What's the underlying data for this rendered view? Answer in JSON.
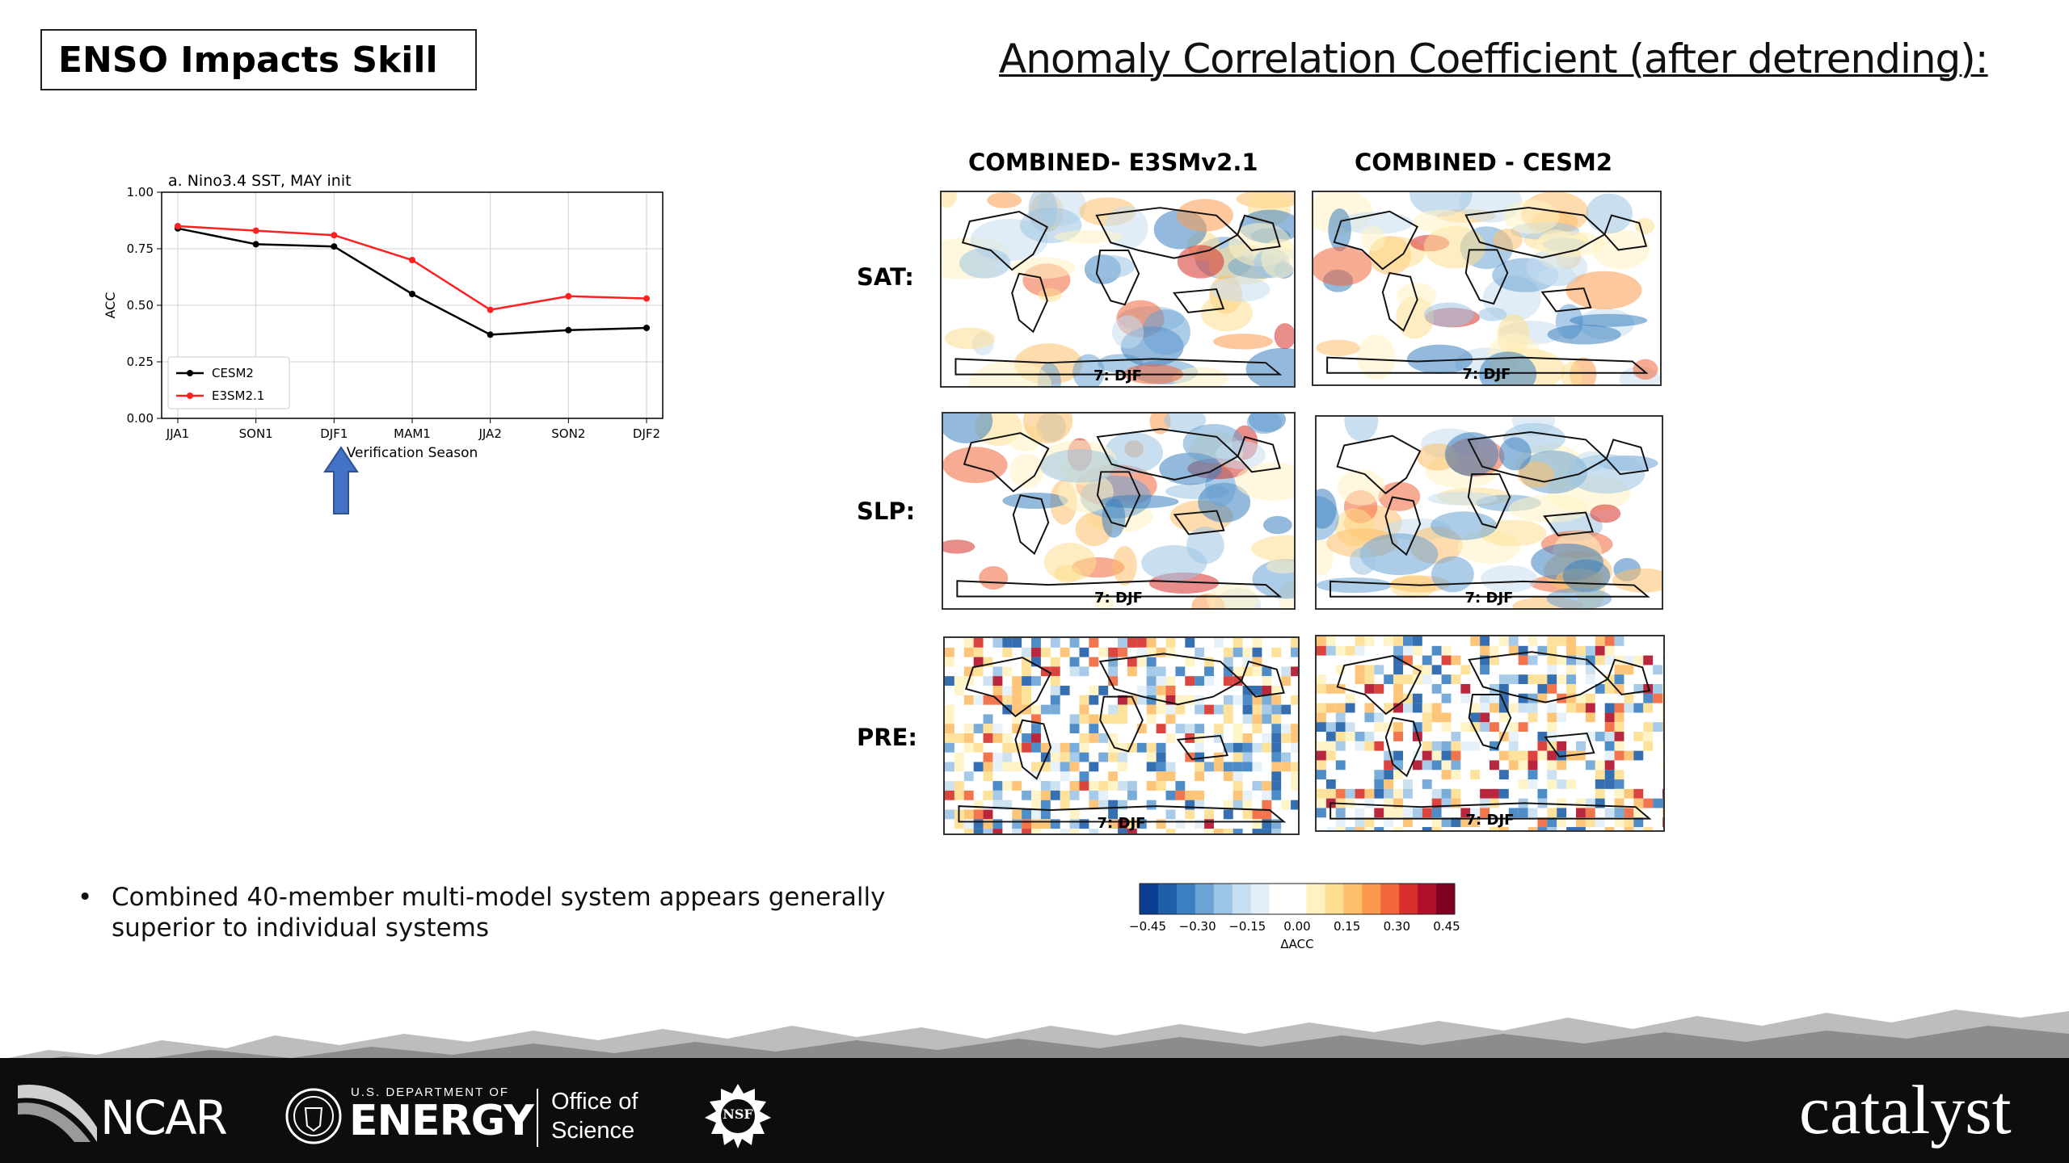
{
  "slide": {
    "title": "ENSO Impacts Skill",
    "heading": "Anomaly Correlation Coefficient (after detrending):",
    "bullet": "Combined 40-member multi-model system appears generally superior to individual systems"
  },
  "chart_data": {
    "type": "line",
    "title": "a. Nino3.4 SST, MAY init",
    "xlabel": "Verification Season",
    "ylabel": "ACC",
    "categories": [
      "JJA1",
      "SON1",
      "DJF1",
      "MAM1",
      "JJA2",
      "SON2",
      "DJF2"
    ],
    "ylim": [
      0,
      1
    ],
    "yticks": [
      "0.00",
      "0.25",
      "0.50",
      "0.75",
      "1.00"
    ],
    "grid": true,
    "legend_position": "lower-left",
    "series": [
      {
        "name": "CESM2",
        "color": "#000000",
        "values": [
          0.84,
          0.77,
          0.76,
          0.55,
          0.37,
          0.39,
          0.4
        ]
      },
      {
        "name": "E3SM2.1",
        "color": "#ff2020",
        "values": [
          0.85,
          0.83,
          0.81,
          0.7,
          0.48,
          0.54,
          0.53
        ]
      }
    ]
  },
  "maps": {
    "columns": [
      "COMBINED- E3SMv2.1",
      "COMBINED - CESM2"
    ],
    "rows": [
      "SAT:",
      "SLP:",
      "PRE:"
    ],
    "panel_label": "7: DJF"
  },
  "colorbar": {
    "ticks": [
      "−0.45",
      "−0.30",
      "−0.15",
      "0.00",
      "0.15",
      "0.30",
      "0.45"
    ],
    "label": "ΔACC",
    "colors": [
      "#0b3d91",
      "#1f5fa8",
      "#3a7fc0",
      "#6aa3d4",
      "#9cc4e4",
      "#c6dff0",
      "#e3eff8",
      "#ffffff",
      "#ffffff",
      "#fff2c2",
      "#fedf90",
      "#fdbf6a",
      "#fb9a4c",
      "#f2663a",
      "#d7302a",
      "#b1102a",
      "#7f0022"
    ]
  },
  "arrow": {
    "color": "#4472c4"
  },
  "footer": {
    "ncar": "NCAR",
    "doe_small": "U.S. DEPARTMENT OF",
    "doe_big": "ENERGY",
    "office1": "Office of",
    "office2": "Science",
    "nsf": "NSF",
    "catalyst": "catalyst"
  }
}
